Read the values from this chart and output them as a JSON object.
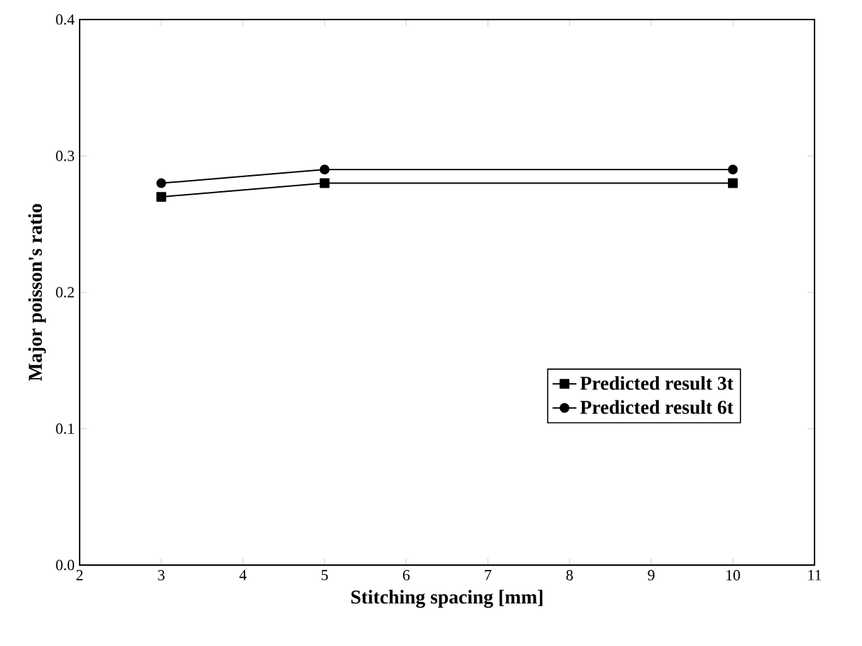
{
  "chart_data": {
    "type": "line",
    "xlabel": "Stitching spacing [mm]",
    "ylabel": "Major poisson's ratio",
    "x": [
      3,
      5,
      10
    ],
    "series": [
      {
        "name": "Predicted result 3t",
        "color": "#000000",
        "marker": "square",
        "values": [
          0.27,
          0.28,
          0.28
        ]
      },
      {
        "name": "Predicted result 6t",
        "color": "#000000",
        "marker": "circle",
        "values": [
          0.28,
          0.29,
          0.29
        ]
      }
    ],
    "xlim": [
      2,
      11
    ],
    "ylim": [
      0,
      0.4
    ],
    "xticks": [
      2,
      3,
      4,
      5,
      6,
      7,
      8,
      9,
      10,
      11
    ],
    "yticks": [
      {
        "value": 0,
        "label": "0.0"
      },
      {
        "value": 0.1,
        "label": "0.1"
      },
      {
        "value": 0.2,
        "label": "0.2"
      },
      {
        "value": 0.3,
        "label": "0.3"
      },
      {
        "value": 0.4,
        "label": "0.4"
      }
    ],
    "legend": "right",
    "line_style": "solid"
  }
}
